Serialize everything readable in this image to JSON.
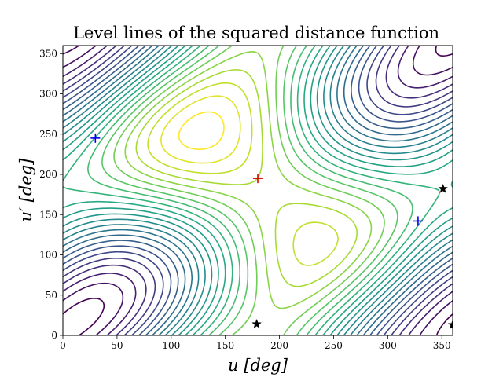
{
  "chart_data": {
    "type": "contour",
    "title": "Level lines of the squared distance function",
    "xlabel": "u [deg]",
    "ylabel": "u′ [deg]",
    "xlim": [
      0,
      360
    ],
    "ylim": [
      0,
      360
    ],
    "xticks": [
      0,
      50,
      100,
      150,
      200,
      250,
      300,
      350
    ],
    "yticks": [
      0,
      50,
      100,
      150,
      200,
      250,
      300,
      350
    ],
    "grid": false,
    "colormap": "viridis",
    "level_count": 24,
    "maximum": {
      "marker": "plus",
      "color": "#e00000",
      "x": 180,
      "y": 195
    },
    "minima": {
      "marker": "plus",
      "color": "#0000ee",
      "points": [
        {
          "x": 30,
          "y": 245
        },
        {
          "x": 328,
          "y": 142
        }
      ]
    },
    "saddles": {
      "marker": "star",
      "color": "#000000",
      "points": [
        {
          "x": 179,
          "y": 14
        },
        {
          "x": 351,
          "y": 182
        },
        {
          "x": 360,
          "y": 13
        }
      ]
    }
  }
}
